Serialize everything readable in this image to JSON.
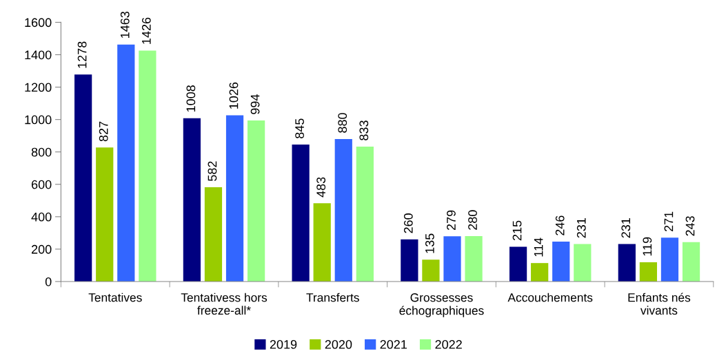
{
  "chart_data": {
    "type": "bar",
    "categories": [
      "Tentatives",
      "Tentativess hors\nfreeze-all*",
      "Transferts",
      "Grossesses\néchographiques",
      "Accouchements",
      "Enfants nés\nvivants"
    ],
    "series": [
      {
        "name": "2019",
        "color": "#000080",
        "values": [
          1278,
          1008,
          845,
          260,
          215,
          231
        ]
      },
      {
        "name": "2020",
        "color": "#99cc00",
        "values": [
          827,
          582,
          483,
          135,
          114,
          119
        ]
      },
      {
        "name": "2021",
        "color": "#3366ff",
        "values": [
          1463,
          1026,
          880,
          279,
          246,
          271
        ]
      },
      {
        "name": "2022",
        "color": "#99ff88",
        "values": [
          1426,
          994,
          833,
          280,
          231,
          243
        ]
      }
    ],
    "ylim": [
      0,
      1600
    ],
    "yticks": [
      0,
      200,
      400,
      600,
      800,
      1000,
      1200,
      1400,
      1600
    ],
    "data_labels": true,
    "grid": false,
    "legend": "bottom"
  }
}
